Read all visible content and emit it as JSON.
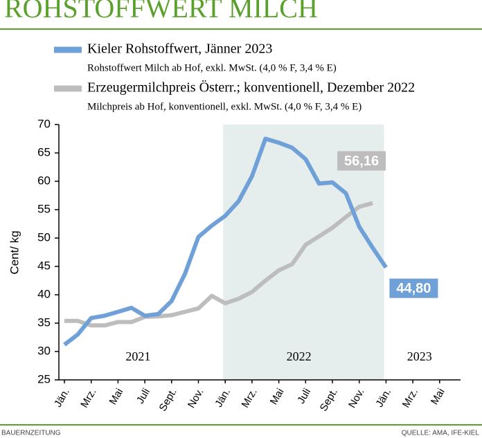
{
  "chart_data": {
    "type": "line",
    "title": "ROHSTOFFWERT MILCH",
    "y_label": "Cent/ kg",
    "source_left": "BAUERNZEITUNG",
    "source_right": "QUELLE: AMA, IFE-KIEL",
    "categories": [
      "Jän.",
      null,
      "Mrz.",
      null,
      "Mai",
      null,
      "Juli",
      null,
      "Sept.",
      null,
      "Nov.",
      null,
      "Jän.",
      null,
      "Mrz.",
      null,
      "Mai",
      null,
      "Juli",
      null,
      "Sept.",
      null,
      "Nov.",
      null,
      "Jän.",
      null,
      "Mrz.",
      null,
      "Mai",
      null
    ],
    "year_labels": [
      "2021",
      "2022",
      "2023"
    ],
    "highlight_range": [
      12,
      24
    ],
    "series": [
      {
        "name": "Kieler Rohstoffwert, Jänner 2023",
        "description": "Rohstoffwert Milch ab Hof, exkl. MwSt. (4,0 % F, 3,4 % E)",
        "color": "#6fa0d8",
        "values": [
          31.2,
          33.0,
          35.9,
          36.3,
          37.0,
          37.7,
          36.3,
          36.6,
          38.9,
          43.7,
          50.2,
          52.2,
          53.9,
          56.5,
          60.9,
          67.5,
          66.8,
          65.9,
          63.9,
          59.6,
          59.8,
          57.9,
          52.0,
          48.3,
          44.8,
          null,
          null,
          null,
          null,
          null
        ],
        "value_labels": [
          null,
          null,
          null,
          null,
          null,
          null,
          null,
          null,
          null,
          null,
          null,
          null,
          null,
          null,
          null,
          null,
          null,
          null,
          null,
          null,
          null,
          null,
          null,
          null,
          "44,80",
          null,
          null,
          null,
          null,
          null
        ]
      },
      {
        "name": "Erzeugermilchpreis Österr.; konventionell, Dezember 2022",
        "description": "Milchpreis ab Hof, konventionell, exkl. MwSt. (4,0 % F, 3,4 % E)",
        "color": "#bdbdbd",
        "values": [
          35.4,
          35.4,
          34.6,
          34.6,
          35.2,
          35.2,
          36.1,
          36.2,
          36.4,
          37.0,
          37.6,
          39.8,
          38.5,
          39.3,
          40.5,
          42.5,
          44.3,
          45.4,
          48.8,
          50.3,
          51.8,
          53.7,
          55.5,
          56.16,
          null,
          null,
          null,
          null,
          null,
          null
        ],
        "value_labels": [
          null,
          null,
          null,
          null,
          null,
          null,
          null,
          null,
          null,
          null,
          null,
          null,
          null,
          null,
          null,
          null,
          null,
          null,
          null,
          null,
          null,
          null,
          null,
          "56,16",
          null,
          null,
          null,
          null,
          null,
          null
        ]
      }
    ],
    "ylim": [
      25,
      70
    ],
    "yticks": [
      25,
      30,
      35,
      40,
      45,
      50,
      55,
      60,
      65,
      70
    ],
    "grid": false
  }
}
